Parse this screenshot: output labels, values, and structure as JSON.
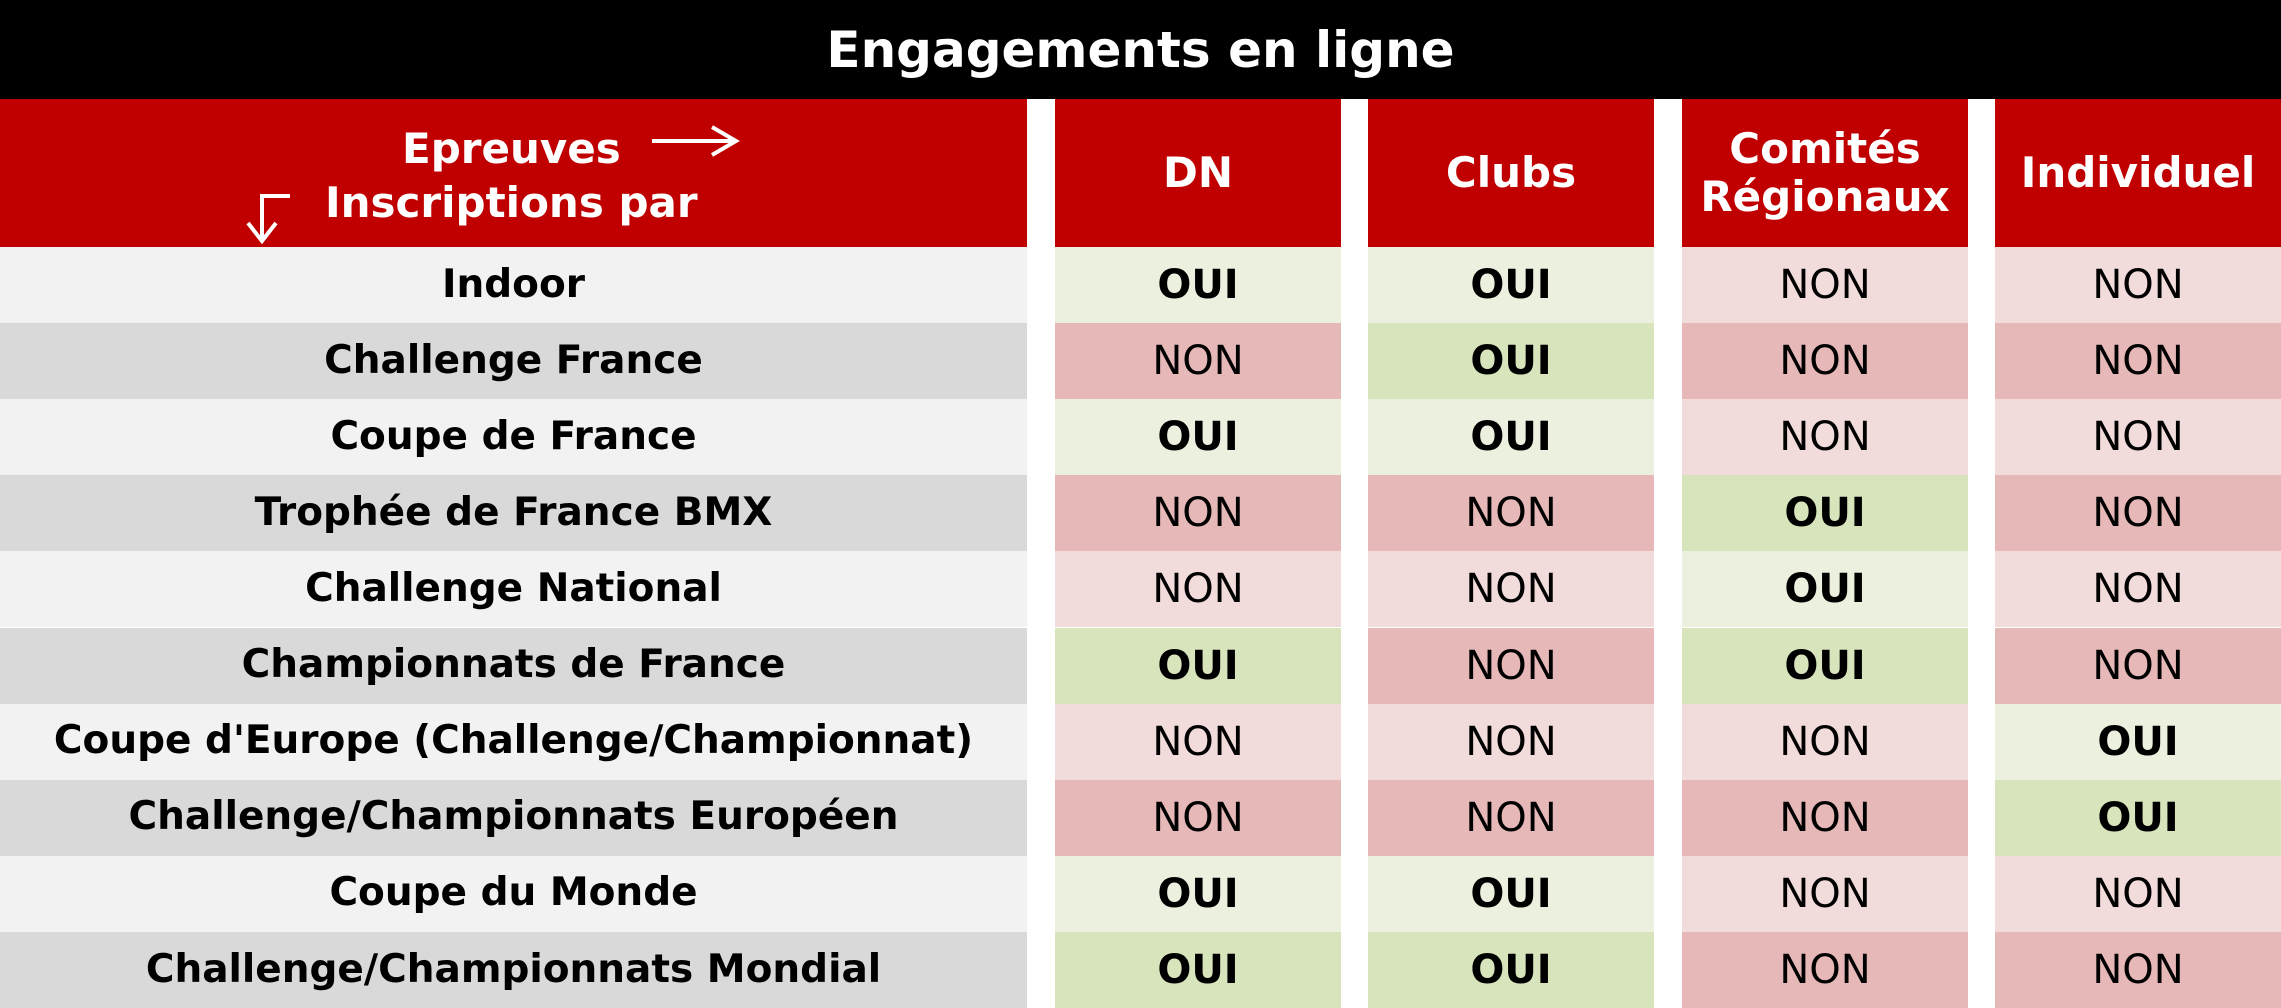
{
  "header": {
    "title": "Engagements en ligne"
  },
  "table": {
    "corner": [
      "Epreuves",
      "Inscriptions par"
    ],
    "columns": [
      "DN",
      "Clubs",
      "Comités Régionaux",
      "Individuel"
    ],
    "rows": [
      [
        "Indoor",
        "OUI",
        "OUI",
        "NON",
        "NON"
      ],
      [
        "Challenge France",
        "NON",
        "OUI",
        "NON",
        "NON"
      ],
      [
        "Coupe de France",
        "OUI",
        "OUI",
        "NON",
        "NON"
      ],
      [
        "Trophée de France BMX",
        "NON",
        "NON",
        "OUI",
        "NON"
      ],
      [
        "Challenge National",
        "NON",
        "NON",
        "OUI",
        "NON"
      ],
      [
        "Championnats de France",
        "OUI",
        "NON",
        "OUI",
        "NON"
      ],
      [
        "Coupe d'Europe (Challenge/Championnat)",
        "NON",
        "NON",
        "NON",
        "OUI"
      ],
      [
        "Challenge/Championnats Européen",
        "NON",
        "NON",
        "NON",
        "OUI"
      ],
      [
        "Coupe du Monde",
        "OUI",
        "OUI",
        "NON",
        "NON"
      ],
      [
        "Challenge/Championnats Mondial",
        "OUI",
        "OUI",
        "NON",
        "NON"
      ]
    ]
  }
}
